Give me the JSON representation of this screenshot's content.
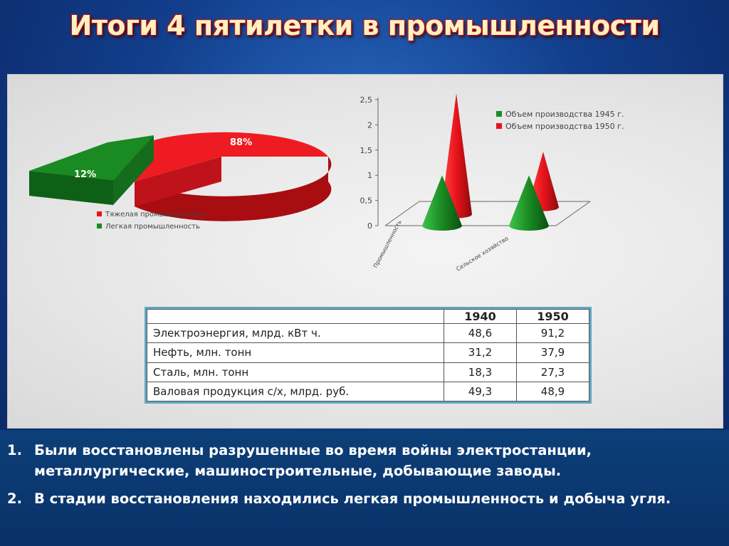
{
  "title": "Итоги 4 пятилетки в промышленности",
  "chart_data": [
    {
      "type": "pie",
      "slices": [
        {
          "label": "Тяжелая промышленность",
          "value": 88,
          "value_label": "88%",
          "color": "#e8141b"
        },
        {
          "label": "Легкая промышленность",
          "value": 12,
          "value_label": "12%",
          "color": "#1a8a22"
        }
      ],
      "legend_position": "bottom-left"
    },
    {
      "type": "bar",
      "style": "3d-cone",
      "categories": [
        "Промышленность",
        "Сельское хозяйство"
      ],
      "series": [
        {
          "name": "Объем производства 1945 г.",
          "color": "#1a8a22",
          "values": [
            1.0,
            1.0
          ]
        },
        {
          "name": "Объем производства 1950 г.",
          "color": "#e8141b",
          "values": [
            2.4,
            1.1
          ]
        }
      ],
      "yticks": [
        "0",
        "0,5",
        "1",
        "1,5",
        "2",
        "2,5"
      ],
      "ylim": [
        0,
        2.5
      ],
      "legend_position": "top-right"
    },
    {
      "type": "table",
      "columns": [
        "",
        "1940",
        "1950"
      ],
      "rows": [
        [
          "Электроэнергия, млрд. кВт ч.",
          "48,6",
          "91,2"
        ],
        [
          "Нефть, млн. тонн",
          "31,2",
          "37,9"
        ],
        [
          "Сталь, млн. тонн",
          "18,3",
          "27,3"
        ],
        [
          "Валовая продукция с/х, млрд. руб.",
          "49,3",
          "48,9"
        ]
      ]
    }
  ],
  "points": [
    {
      "num": "1.",
      "text": "Были восстановлены разрушенные во время войны  электростанции, металлургические, машиностроительные, добывающие заводы."
    },
    {
      "num": "2.",
      "text": "В стадии восстановления находились легкая промышленность и добыча угля."
    }
  ]
}
